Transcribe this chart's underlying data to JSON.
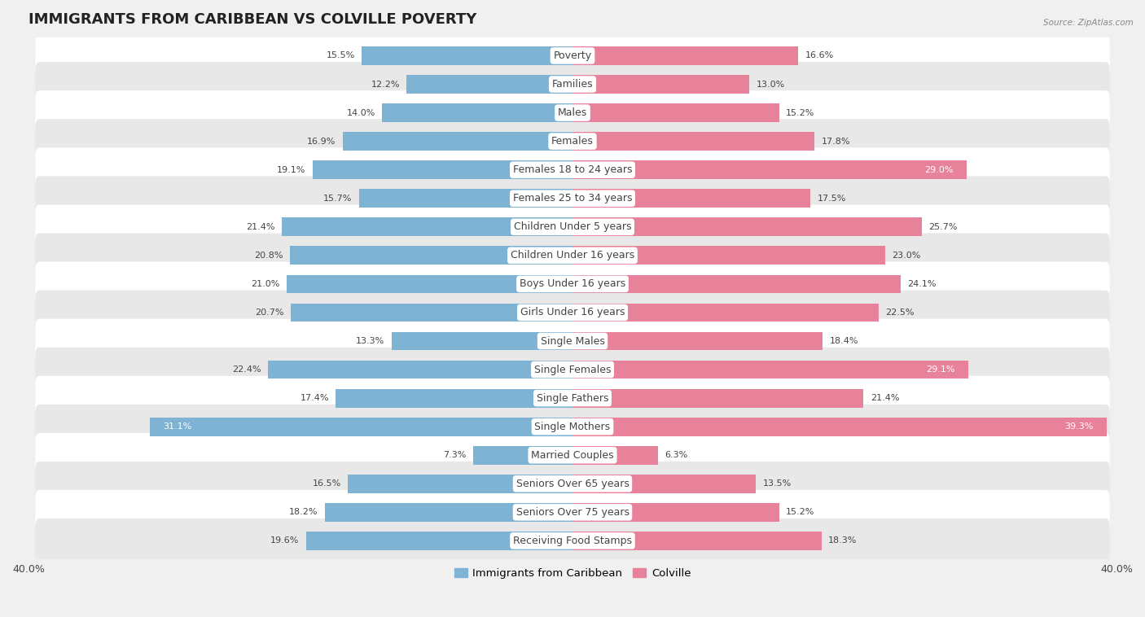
{
  "title": "IMMIGRANTS FROM CARIBBEAN VS COLVILLE POVERTY",
  "source": "Source: ZipAtlas.com",
  "categories": [
    "Poverty",
    "Families",
    "Males",
    "Females",
    "Females 18 to 24 years",
    "Females 25 to 34 years",
    "Children Under 5 years",
    "Children Under 16 years",
    "Boys Under 16 years",
    "Girls Under 16 years",
    "Single Males",
    "Single Females",
    "Single Fathers",
    "Single Mothers",
    "Married Couples",
    "Seniors Over 65 years",
    "Seniors Over 75 years",
    "Receiving Food Stamps"
  ],
  "left_values": [
    15.5,
    12.2,
    14.0,
    16.9,
    19.1,
    15.7,
    21.4,
    20.8,
    21.0,
    20.7,
    13.3,
    22.4,
    17.4,
    31.1,
    7.3,
    16.5,
    18.2,
    19.6
  ],
  "right_values": [
    16.6,
    13.0,
    15.2,
    17.8,
    29.0,
    17.5,
    25.7,
    23.0,
    24.1,
    22.5,
    18.4,
    29.1,
    21.4,
    39.3,
    6.3,
    13.5,
    15.2,
    18.3
  ],
  "left_color": "#7fb3d3",
  "right_color": "#e8829a",
  "left_label": "Immigrants from Caribbean",
  "right_label": "Colville",
  "axis_limit": 40.0,
  "background_color": "#f0f0f0",
  "row_color_even": "#ffffff",
  "row_color_odd": "#e8e8e8",
  "title_fontsize": 13,
  "label_fontsize": 9,
  "value_fontsize": 8,
  "axis_label_fontsize": 9,
  "inside_threshold": 27
}
